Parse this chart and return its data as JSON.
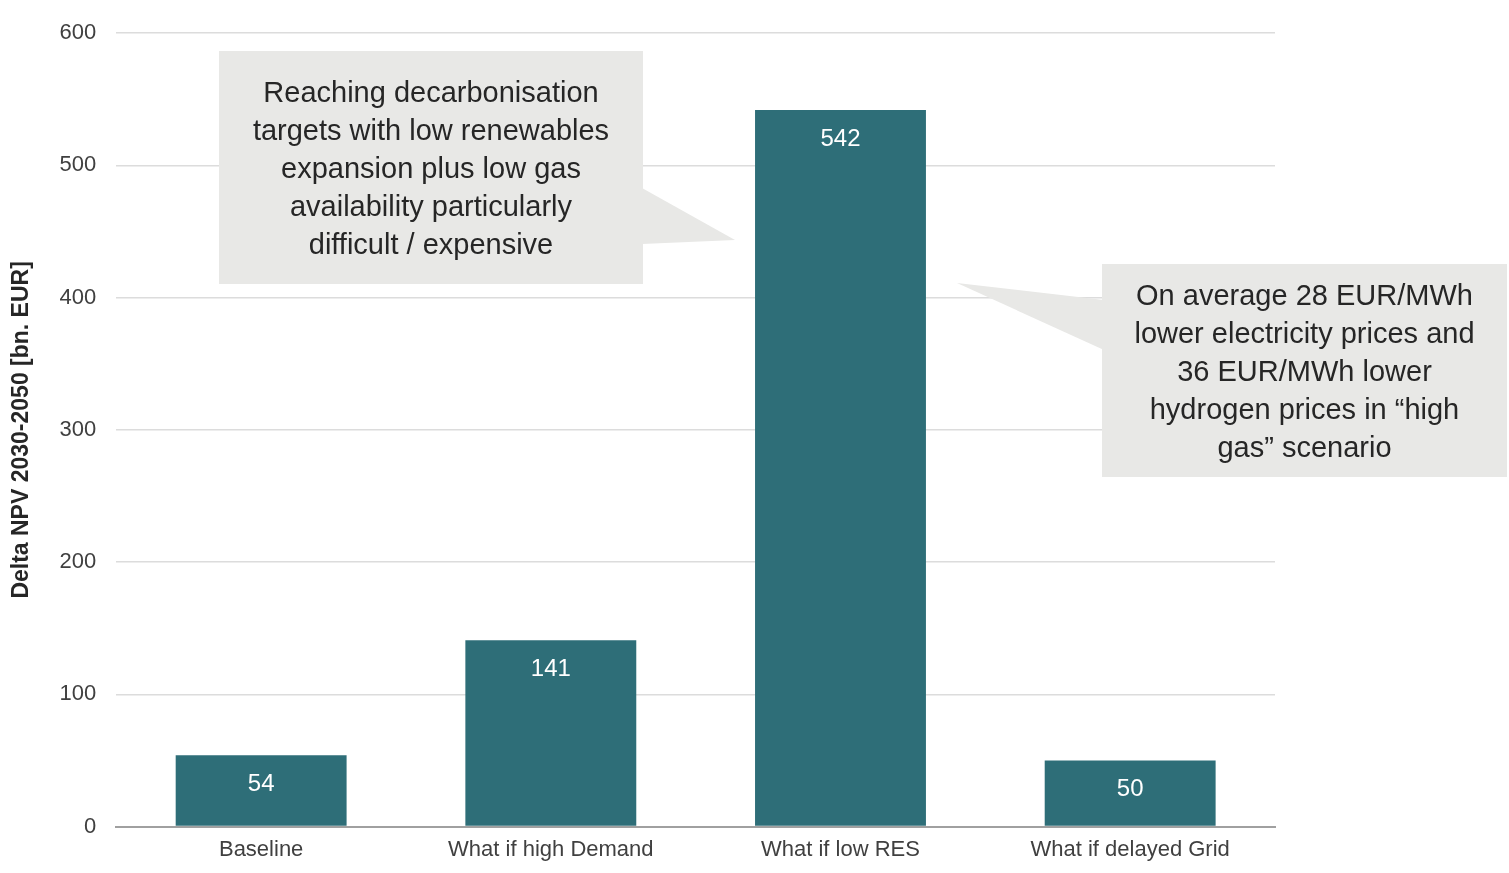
{
  "chart_data": {
    "type": "bar",
    "ylabel": "Delta NPV 2030-2050 [bn. EUR]",
    "categories": [
      "Baseline",
      "What if high Demand",
      "What if low RES",
      "What if delayed Grid"
    ],
    "values": [
      54,
      141,
      542,
      50
    ],
    "color": "#2e6e78",
    "ylim": [
      0,
      600
    ],
    "yticks": [
      0,
      100,
      200,
      300,
      400,
      500,
      600
    ],
    "grid": "y",
    "data_labels": true,
    "legend": false,
    "annotations": [
      "Reaching decarbonisation targets with low renewables expansion plus low gas availability particularly difficult / expensive",
      "On average 28 EUR/MWh lower electricity prices and 36 EUR/MWh lower hydrogen prices in “high gas” scenario"
    ]
  }
}
